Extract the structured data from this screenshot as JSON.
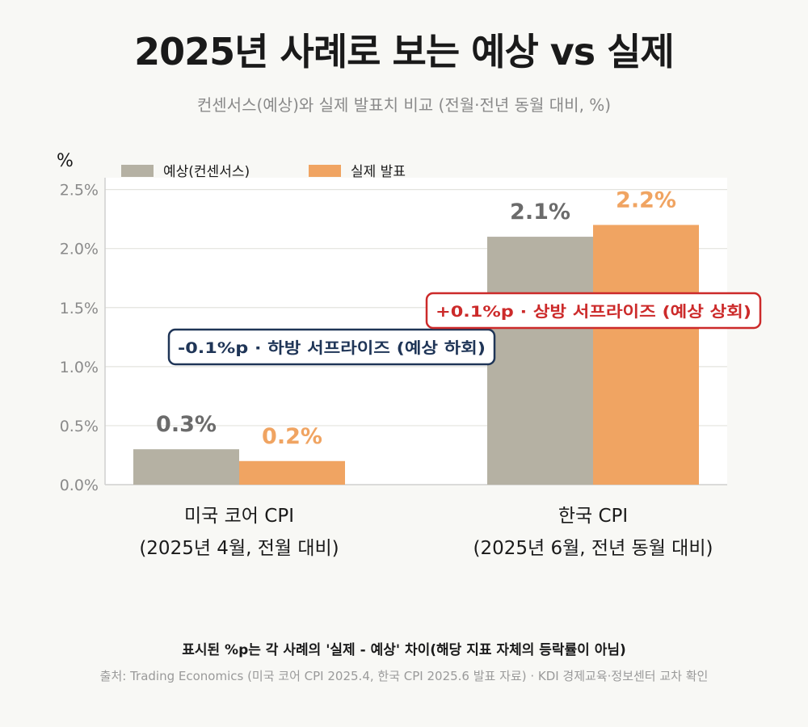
{
  "title": "2025년 사례로 보는 예상 vs 실제",
  "subtitle": "컨센서스(예상)와 실제 발표치 비교 (전월·전년 동월 대비, %)",
  "footnote": "표시된 %p는 각 사례의 '실제 - 예상' 차이(해당 지표 자체의 등락률이 아님)",
  "source": "출처: Trading Economics (미국 코어 CPI 2025.4, 한국 CPI 2025.6 발표 자료) · KDI 경제교육·정보센터 교차 확인",
  "colors": {
    "expected": "#b5b1a3",
    "actual": "#f0a462",
    "expected_label": "#6b6b6b",
    "actual_label": "#f0a462",
    "down_box": "#1f3557",
    "up_box": "#cc2a2a"
  },
  "chart_data": {
    "type": "bar",
    "ylabel": "%",
    "ylim": [
      0,
      2.6
    ],
    "yticks": [
      0.0,
      0.5,
      1.0,
      1.5,
      2.0,
      2.5
    ],
    "ytick_labels": [
      "0.0%",
      "0.5%",
      "1.0%",
      "1.5%",
      "2.0%",
      "2.5%"
    ],
    "grid": true,
    "legend_position": "top-left",
    "categories": [
      {
        "line1": "미국 코어 CPI",
        "line2": "(2025년 4월, 전월 대비)"
      },
      {
        "line1": "한국 CPI",
        "line2": "(2025년 6월, 전년 동월 대비)"
      }
    ],
    "series": [
      {
        "name": "예상(컨센서스)",
        "key": "expected",
        "values": [
          0.3,
          2.1
        ],
        "labels": [
          "0.3%",
          "2.1%"
        ]
      },
      {
        "name": "실제 발표",
        "key": "actual",
        "values": [
          0.2,
          2.2
        ],
        "labels": [
          "0.2%",
          "2.2%"
        ]
      }
    ],
    "annotations": [
      {
        "text": "-0.1%p · 하방 서프라이즈 (예상 하회)",
        "category": 0,
        "style": "down"
      },
      {
        "text": "+0.1%p · 상방 서프라이즈 (예상 상회)",
        "category": 1,
        "style": "up"
      }
    ]
  }
}
